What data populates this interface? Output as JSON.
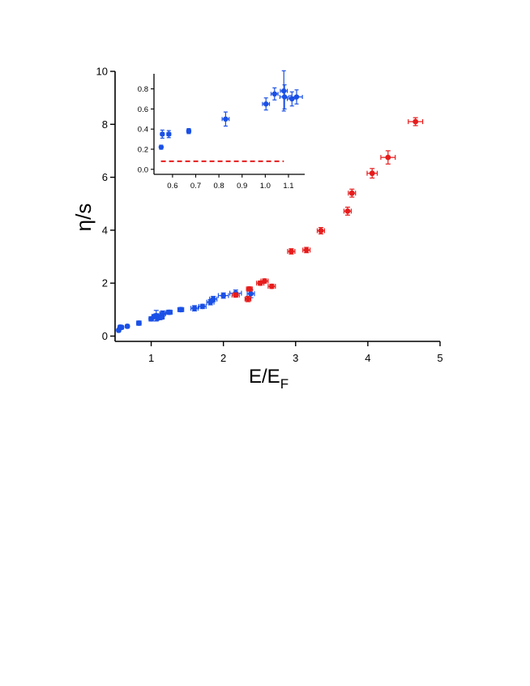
{
  "chart_data": [
    {
      "type": "scatter",
      "title": "",
      "xlabel": "E/E",
      "xlabel_sub": "F",
      "ylabel": "η/s",
      "xlim": [
        0.5,
        5
      ],
      "ylim": [
        -0.2,
        10
      ],
      "xticks": [
        "1",
        "2",
        "3",
        "4",
        "5"
      ],
      "yticks": [
        "0",
        "2",
        "4",
        "6",
        "8",
        "10"
      ],
      "grid": false,
      "colors": {
        "blue": "#1a50e6",
        "red": "#e61c1c"
      },
      "series": [
        {
          "color": "#1a50e6",
          "points": [
            {
              "x": 0.55,
              "y": 0.22,
              "xerr": 0.02,
              "yerr": 0.05
            },
            {
              "x": 0.57,
              "y": 0.34,
              "xerr": 0.02,
              "yerr": 0.06
            },
            {
              "x": 0.59,
              "y": 0.33,
              "xerr": 0.02,
              "yerr": 0.06
            },
            {
              "x": 0.67,
              "y": 0.37,
              "xerr": 0.02,
              "yerr": 0.05
            },
            {
              "x": 0.83,
              "y": 0.49,
              "xerr": 0.03,
              "yerr": 0.08
            },
            {
              "x": 1.0,
              "y": 0.65,
              "xerr": 0.03,
              "yerr": 0.08
            },
            {
              "x": 1.04,
              "y": 0.74,
              "xerr": 0.03,
              "yerr": 0.07
            },
            {
              "x": 1.07,
              "y": 0.77,
              "xerr": 0.03,
              "yerr": 0.2
            },
            {
              "x": 1.08,
              "y": 0.72,
              "xerr": 0.03,
              "yerr": 0.12
            },
            {
              "x": 1.12,
              "y": 0.7,
              "xerr": 0.03,
              "yerr": 0.08
            },
            {
              "x": 1.14,
              "y": 0.72,
              "xerr": 0.04,
              "yerr": 0.08
            },
            {
              "x": 1.16,
              "y": 0.85,
              "xerr": 0.04,
              "yerr": 0.1
            },
            {
              "x": 1.25,
              "y": 0.9,
              "xerr": 0.04,
              "yerr": 0.08
            },
            {
              "x": 1.41,
              "y": 1.0,
              "xerr": 0.04,
              "yerr": 0.08
            },
            {
              "x": 1.6,
              "y": 1.05,
              "xerr": 0.05,
              "yerr": 0.1
            },
            {
              "x": 1.71,
              "y": 1.12,
              "xerr": 0.05,
              "yerr": 0.08
            },
            {
              "x": 1.82,
              "y": 1.28,
              "xerr": 0.05,
              "yerr": 0.1
            },
            {
              "x": 1.86,
              "y": 1.4,
              "xerr": 0.05,
              "yerr": 0.1
            },
            {
              "x": 2.0,
              "y": 1.53,
              "xerr": 0.07,
              "yerr": 0.1
            },
            {
              "x": 2.17,
              "y": 1.62,
              "xerr": 0.08,
              "yerr": 0.12
            },
            {
              "x": 2.38,
              "y": 1.6,
              "xerr": 0.05,
              "yerr": 0.15
            }
          ]
        },
        {
          "color": "#e61c1c",
          "points": [
            {
              "x": 2.17,
              "y": 1.55,
              "xerr": 0.05,
              "yerr": 0.08
            },
            {
              "x": 2.34,
              "y": 1.4,
              "xerr": 0.04,
              "yerr": 0.1
            },
            {
              "x": 2.36,
              "y": 1.78,
              "xerr": 0.04,
              "yerr": 0.08
            },
            {
              "x": 2.51,
              "y": 2.0,
              "xerr": 0.05,
              "yerr": 0.08
            },
            {
              "x": 2.57,
              "y": 2.08,
              "xerr": 0.05,
              "yerr": 0.08
            },
            {
              "x": 2.67,
              "y": 1.88,
              "xerr": 0.05,
              "yerr": 0.08
            },
            {
              "x": 2.94,
              "y": 3.2,
              "xerr": 0.05,
              "yerr": 0.1
            },
            {
              "x": 3.15,
              "y": 3.25,
              "xerr": 0.05,
              "yerr": 0.1
            },
            {
              "x": 3.35,
              "y": 3.98,
              "xerr": 0.05,
              "yerr": 0.12
            },
            {
              "x": 3.72,
              "y": 4.72,
              "xerr": 0.05,
              "yerr": 0.15
            },
            {
              "x": 3.78,
              "y": 5.4,
              "xerr": 0.05,
              "yerr": 0.15
            },
            {
              "x": 4.06,
              "y": 6.15,
              "xerr": 0.07,
              "yerr": 0.18
            },
            {
              "x": 4.28,
              "y": 6.75,
              "xerr": 0.1,
              "yerr": 0.25
            },
            {
              "x": 4.66,
              "y": 8.1,
              "xerr": 0.1,
              "yerr": 0.15
            }
          ]
        }
      ]
    },
    {
      "type": "scatter",
      "title": "",
      "xlim": [
        0.52,
        1.17
      ],
      "ylim": [
        -0.05,
        0.95
      ],
      "xticks": [
        "0.6",
        "0.7",
        "0.8",
        "0.9",
        "1.0",
        "1.1"
      ],
      "yticks": [
        "0.0",
        "0.2",
        "0.4",
        "0.6",
        "0.8"
      ],
      "grid": false,
      "reference_line": {
        "y": 0.08,
        "x_range": [
          0.55,
          1.08
        ],
        "color": "#e61c1c",
        "style": "dashed"
      },
      "series": [
        {
          "color": "#1a50e6",
          "points": [
            {
              "x": 0.551,
              "y": 0.22,
              "xerr": 0.005,
              "yerr": 0.02
            },
            {
              "x": 0.556,
              "y": 0.35,
              "xerr": 0.007,
              "yerr": 0.04
            },
            {
              "x": 0.584,
              "y": 0.35,
              "xerr": 0.008,
              "yerr": 0.035
            },
            {
              "x": 0.67,
              "y": 0.38,
              "xerr": 0.008,
              "yerr": 0.025
            },
            {
              "x": 0.829,
              "y": 0.5,
              "xerr": 0.015,
              "yerr": 0.07
            },
            {
              "x": 1.003,
              "y": 0.65,
              "xerr": 0.015,
              "yerr": 0.06
            },
            {
              "x": 1.04,
              "y": 0.75,
              "xerr": 0.015,
              "yerr": 0.06
            },
            {
              "x": 1.08,
              "y": 0.78,
              "xerr": 0.015,
              "yerr": 0.2
            },
            {
              "x": 1.083,
              "y": 0.72,
              "xerr": 0.02,
              "yerr": 0.12
            },
            {
              "x": 1.115,
              "y": 0.7,
              "xerr": 0.02,
              "yerr": 0.07
            },
            {
              "x": 1.135,
              "y": 0.72,
              "xerr": 0.025,
              "yerr": 0.07
            }
          ]
        }
      ]
    }
  ]
}
